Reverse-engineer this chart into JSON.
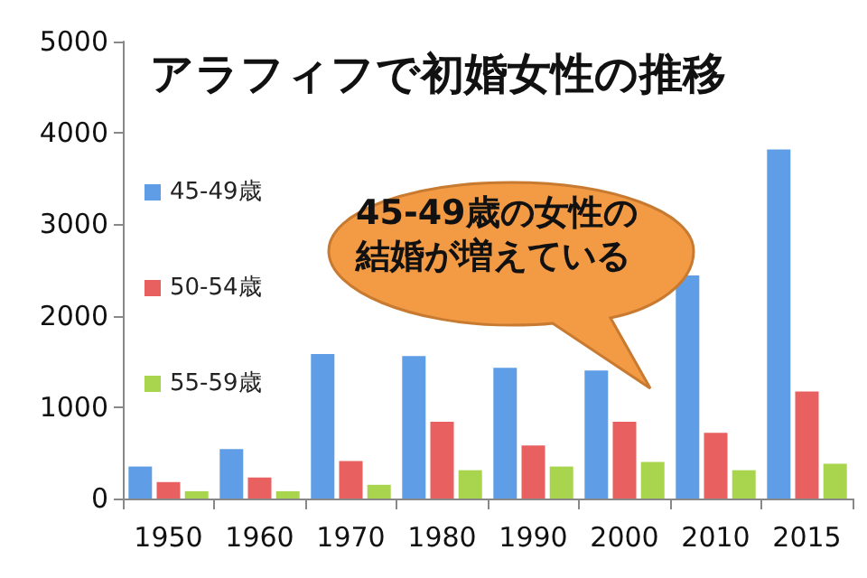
{
  "chart_data": {
    "type": "bar",
    "title": "アラフィフで初婚女性の推移",
    "categories": [
      "1950",
      "1960",
      "1970",
      "1980",
      "1990",
      "2000",
      "2010",
      "2015"
    ],
    "series": [
      {
        "name": "45-49歳",
        "color": "#5f9ee6",
        "values": [
          350,
          540,
          1580,
          1560,
          1430,
          1400,
          2440,
          3820
        ]
      },
      {
        "name": "50-54歳",
        "color": "#e8605f",
        "values": [
          180,
          230,
          410,
          840,
          580,
          840,
          720,
          1170
        ]
      },
      {
        "name": "55-59歳",
        "color": "#a8d44e",
        "values": [
          80,
          80,
          150,
          310,
          350,
          400,
          310,
          380
        ]
      }
    ],
    "ylim": [
      0,
      5000
    ],
    "yticks": [
      0,
      1000,
      2000,
      3000,
      4000,
      5000
    ],
    "grid": false,
    "legend": "left",
    "annotations": [
      "45-49歳の女性の結婚が増えている"
    ]
  }
}
